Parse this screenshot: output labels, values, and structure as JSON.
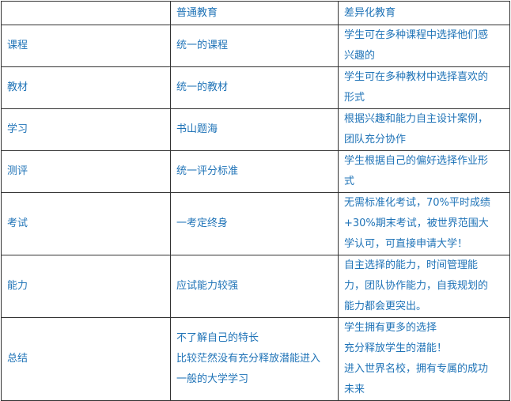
{
  "headers": [
    "",
    "普通教育",
    "差异化教育"
  ],
  "rows": [
    {
      "label": "课程",
      "normal": [
        "统一的课程"
      ],
      "diff": [
        "学生可在多种课程中选择他们感",
        "兴趣的"
      ]
    },
    {
      "label": "教材",
      "normal": [
        "统一的教材"
      ],
      "diff": [
        "学生可在多种教材中选择喜欢的",
        "形式"
      ]
    },
    {
      "label": "学习",
      "normal": [
        "书山题海"
      ],
      "diff": [
        "根据兴趣和能力自主设计案例，",
        "团队充分协作"
      ]
    },
    {
      "label": "测评",
      "normal": [
        "统一评分标准"
      ],
      "diff": [
        "学生根据自己的偏好选择作业形",
        "式"
      ]
    },
    {
      "label": "考试",
      "normal": [
        "一考定终身"
      ],
      "diff": [
        "无需标准化考试，70%平时成绩",
        "+30%期末考试，被世界范围大",
        "学认可，可直接申请大学！"
      ]
    },
    {
      "label": "能力",
      "normal": [
        "应试能力较强"
      ],
      "diff": [
        "自主选择的能力，时间管理能",
        "力，团队协作能力，自我规划的",
        "能力都会更突出。"
      ]
    },
    {
      "label": "总结",
      "normal": [
        "不了解自己的特长",
        "比较茫然没有充分释放潜能进入",
        "一般的大学学习"
      ],
      "diff": [
        "学生拥有更多的选择",
        "充分释放学生的潜能！",
        "进入世界名校，拥有专属的成功",
        "未来"
      ]
    }
  ],
  "colors": {
    "text": "#1f73b7",
    "border": "#333333"
  }
}
